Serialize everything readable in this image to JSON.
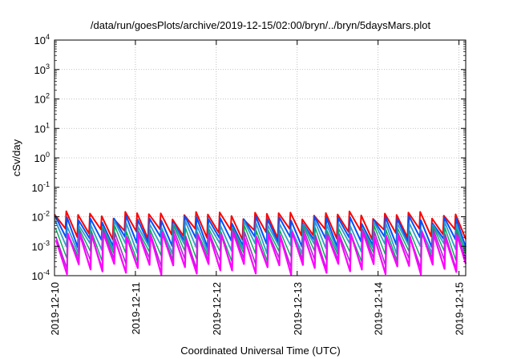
{
  "chart_data": {
    "type": "line",
    "title": "/data/run/goesPlots/archive/2019-12-15/02:00/bryn/../bryn/5daysMars.plot",
    "xlabel": "Coordinated Universal Time (UTC)",
    "ylabel": "cSv/day",
    "yscale": "log",
    "ylim": [
      0.0001,
      10000
    ],
    "xlim": [
      "2019-12-10 00:00",
      "2019-12-15 02:00"
    ],
    "grid": true,
    "yticks": [
      {
        "base": "10",
        "exp": "-4",
        "value": 0.0001
      },
      {
        "base": "10",
        "exp": "-3",
        "value": 0.001
      },
      {
        "base": "10",
        "exp": "-2",
        "value": 0.01
      },
      {
        "base": "10",
        "exp": "-1",
        "value": 0.1
      },
      {
        "base": "10",
        "exp": "0",
        "value": 1
      },
      {
        "base": "10",
        "exp": "1",
        "value": 10
      },
      {
        "base": "10",
        "exp": "2",
        "value": 100
      },
      {
        "base": "10",
        "exp": "3",
        "value": 1000
      },
      {
        "base": "10",
        "exp": "4",
        "value": 10000
      }
    ],
    "xticks": [
      {
        "label": "2019-12-10",
        "day": 0
      },
      {
        "label": "2019-12-11",
        "day": 1
      },
      {
        "label": "2019-12-12",
        "day": 2
      },
      {
        "label": "2019-12-13",
        "day": 3
      },
      {
        "label": "2019-12-14",
        "day": 4
      },
      {
        "label": "2019-12-15",
        "day": 5
      }
    ],
    "cycle_hours": 3.5,
    "series": [
      {
        "color": "#ff0000",
        "peak": 0.012,
        "trough": 0.0028,
        "phase": 0.0,
        "width": 2
      },
      {
        "color": "#0050ff",
        "peak": 0.0085,
        "trough": 0.0015,
        "phase": 0.05,
        "width": 2
      },
      {
        "color": "#3399cc",
        "peak": 0.0055,
        "trough": 0.0009,
        "phase": 0.08,
        "width": 1.8
      },
      {
        "color": "#00aa55",
        "peak": 0.0038,
        "trough": 0.0005,
        "phase": 0.1,
        "width": 1.4
      },
      {
        "color": "#9933cc",
        "peak": 0.0028,
        "trough": 0.00028,
        "phase": 0.12,
        "width": 1.6
      },
      {
        "color": "#ff00ff",
        "peak": 0.0024,
        "trough": 0.00018,
        "phase": 0.13,
        "width": 2.2
      }
    ]
  }
}
